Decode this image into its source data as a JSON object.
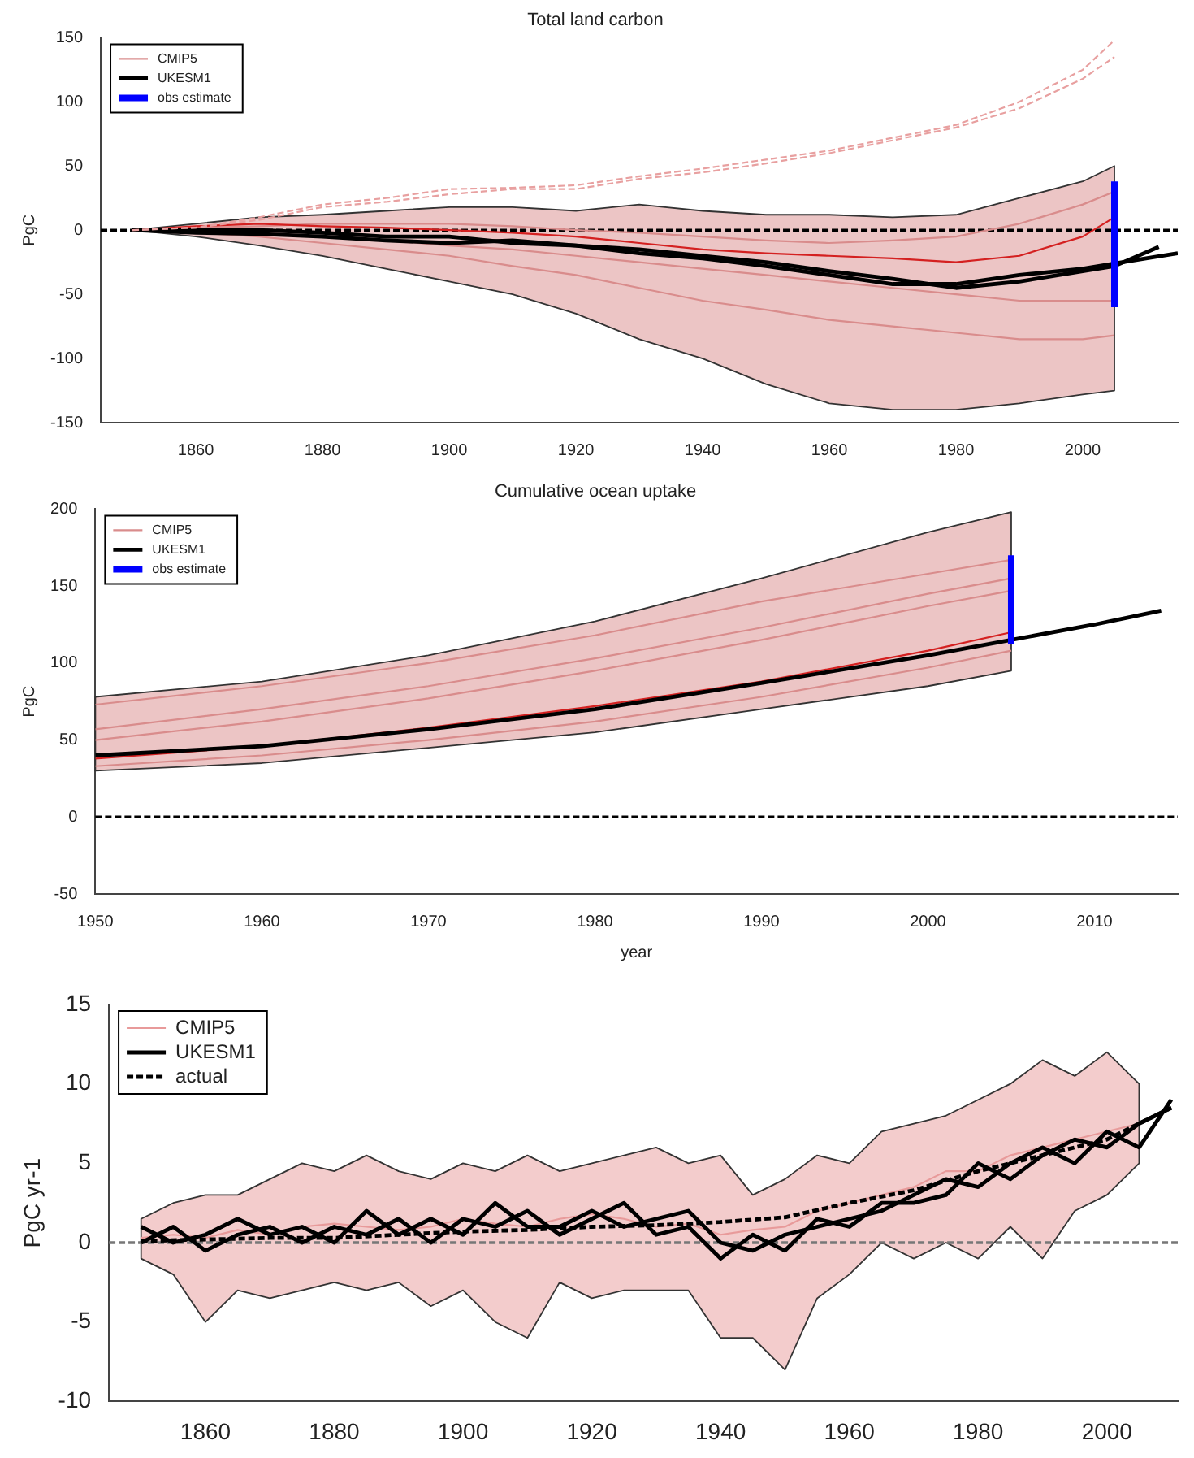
{
  "chart_data": [
    {
      "type": "line",
      "title": "Total land carbon",
      "ylabel": "PgC",
      "xlim": [
        1845,
        2015
      ],
      "xticks": [
        1860,
        1880,
        1900,
        1920,
        1940,
        1960,
        1980,
        2000
      ],
      "ylim": [
        -150,
        150
      ],
      "yticks": [
        -150,
        -100,
        -50,
        0,
        50,
        100,
        150
      ],
      "grid": false,
      "legend": "top left",
      "marker": "none",
      "ref_lines": [
        {
          "axis": "y",
          "value": 0,
          "color": "#000000",
          "line_style": "dashed"
        }
      ],
      "series": [
        {
          "name": "CMIP5",
          "color": "#d98c8c",
          "x": [
            1850,
            1860,
            1870,
            1880,
            1890,
            1900,
            1910,
            1920,
            1930,
            1940,
            1950,
            1960,
            1970,
            1980,
            1990,
            2000,
            2005
          ],
          "values": [
            0,
            0,
            -2,
            -5,
            -8,
            -12,
            -15,
            -20,
            -25,
            -30,
            -35,
            -40,
            -45,
            -50,
            -55,
            -55,
            -55
          ],
          "lower": [
            0,
            -5,
            -12,
            -20,
            -30,
            -40,
            -50,
            -65,
            -85,
            -100,
            -120,
            -135,
            -140,
            -140,
            -135,
            -128,
            -125
          ],
          "upper": [
            0,
            5,
            10,
            12,
            15,
            18,
            18,
            15,
            20,
            15,
            12,
            12,
            10,
            12,
            25,
            38,
            50
          ]
        },
        {
          "color": "#d98c8c",
          "x": [
            1850,
            1860,
            1870,
            1880,
            1890,
            1900,
            1910,
            1920,
            1930,
            1940,
            1950,
            1960,
            1970,
            1980,
            1990,
            2000,
            2005
          ],
          "values": [
            0,
            -2,
            -5,
            -10,
            -15,
            -20,
            -28,
            -35,
            -45,
            -55,
            -62,
            -70,
            -75,
            -80,
            -85,
            -85,
            -82
          ]
        },
        {
          "color": "#d98c8c",
          "x": [
            1850,
            1860,
            1870,
            1880,
            1890,
            1900,
            1910,
            1920,
            1930,
            1940,
            1950,
            1960,
            1970,
            1980,
            1990,
            2000,
            2005
          ],
          "values": [
            0,
            2,
            3,
            5,
            5,
            5,
            3,
            0,
            -2,
            -5,
            -8,
            -10,
            -8,
            -5,
            5,
            20,
            30
          ]
        },
        {
          "color": "#e8a0a0",
          "line_style": "dashed",
          "x": [
            1850,
            1860,
            1870,
            1880,
            1890,
            1900,
            1910,
            1920,
            1930,
            1940,
            1950,
            1960,
            1970,
            1980,
            1990,
            2000,
            2005
          ],
          "values": [
            0,
            2,
            10,
            20,
            25,
            32,
            33,
            35,
            42,
            48,
            55,
            62,
            72,
            82,
            100,
            125,
            148
          ]
        },
        {
          "color": "#e8a0a0",
          "line_style": "dashed",
          "x": [
            1850,
            1860,
            1870,
            1880,
            1890,
            1900,
            1910,
            1920,
            1930,
            1940,
            1950,
            1960,
            1970,
            1980,
            1990,
            2000,
            2005
          ],
          "values": [
            0,
            2,
            8,
            18,
            22,
            28,
            32,
            32,
            40,
            45,
            52,
            60,
            70,
            80,
            95,
            118,
            135
          ]
        },
        {
          "color": "#d42020",
          "x": [
            1850,
            1860,
            1870,
            1880,
            1890,
            1900,
            1910,
            1920,
            1930,
            1940,
            1950,
            1960,
            1970,
            1980,
            1990,
            2000,
            2005
          ],
          "values": [
            0,
            3,
            5,
            3,
            2,
            0,
            -2,
            -5,
            -10,
            -15,
            -18,
            -20,
            -22,
            -25,
            -20,
            -5,
            10
          ]
        },
        {
          "name": "UKESM1",
          "color": "#000000",
          "x": [
            1850,
            1860,
            1870,
            1880,
            1890,
            1900,
            1910,
            1920,
            1930,
            1940,
            1950,
            1960,
            1970,
            1980,
            1990,
            2000,
            2010,
            2015
          ],
          "values": [
            0,
            0,
            0,
            -2,
            -5,
            -5,
            -10,
            -12,
            -18,
            -22,
            -28,
            -35,
            -42,
            -42,
            -35,
            -30,
            -22,
            -18
          ]
        },
        {
          "color": "#000000",
          "x": [
            1850,
            1860,
            1870,
            1880,
            1890,
            1900,
            1910,
            1920,
            1930,
            1940,
            1950,
            1960,
            1970,
            1980,
            1990,
            2000,
            2005,
            2012
          ],
          "values": [
            0,
            -2,
            -3,
            -5,
            -8,
            -10,
            -8,
            -12,
            -15,
            -20,
            -25,
            -32,
            -38,
            -45,
            -40,
            -32,
            -28,
            -13
          ]
        },
        {
          "name": "obs estimate",
          "color": "#0000ff",
          "x": [
            2005,
            2005
          ],
          "values": [
            -60,
            38
          ]
        }
      ]
    },
    {
      "type": "line",
      "title": "Cumulative ocean uptake",
      "xlabel": "year",
      "ylabel": "PgC",
      "xlim": [
        1950,
        2015
      ],
      "xticks": [
        1950,
        1960,
        1970,
        1980,
        1990,
        2000,
        2010
      ],
      "ylim": [
        -50,
        200
      ],
      "yticks": [
        -50,
        0,
        50,
        100,
        150,
        200
      ],
      "grid": false,
      "legend": "top left",
      "marker": "none",
      "ref_lines": [
        {
          "axis": "y",
          "value": 0,
          "color": "#000000",
          "line_style": "dashed"
        }
      ],
      "series": [
        {
          "name": "CMIP5",
          "color": "#d98c8c",
          "x": [
            1950,
            1960,
            1970,
            1980,
            1990,
            2000,
            2005
          ],
          "values": [
            73,
            85,
            100,
            118,
            140,
            158,
            167
          ],
          "lower": [
            30,
            35,
            45,
            55,
            70,
            85,
            95
          ],
          "upper": [
            78,
            88,
            105,
            127,
            155,
            185,
            198
          ]
        },
        {
          "color": "#d98c8c",
          "x": [
            1950,
            1960,
            1970,
            1980,
            1990,
            2000,
            2005
          ],
          "values": [
            57,
            70,
            85,
            103,
            123,
            145,
            155
          ]
        },
        {
          "color": "#d98c8c",
          "x": [
            1950,
            1960,
            1970,
            1980,
            1990,
            2000,
            2005
          ],
          "values": [
            50,
            62,
            77,
            95,
            115,
            137,
            147
          ]
        },
        {
          "color": "#d98c8c",
          "x": [
            1950,
            1960,
            1970,
            1980,
            1990,
            2000,
            2005
          ],
          "values": [
            33,
            40,
            50,
            62,
            78,
            97,
            108
          ]
        },
        {
          "color": "#d42020",
          "x": [
            1950,
            1960,
            1970,
            1980,
            1990,
            2000,
            2005
          ],
          "values": [
            38,
            46,
            58,
            72,
            88,
            108,
            120
          ]
        },
        {
          "name": "UKESM1",
          "color": "#000000",
          "x": [
            1950,
            1960,
            1970,
            1980,
            1990,
            2000,
            2005,
            2010,
            2014
          ],
          "values": [
            40,
            46,
            57,
            70,
            87,
            105,
            115,
            125,
            134
          ]
        },
        {
          "name": "obs estimate",
          "color": "#0000ff",
          "x": [
            2005,
            2005
          ],
          "values": [
            112,
            170
          ]
        }
      ]
    },
    {
      "type": "line",
      "ylabel": "PgC yr-1",
      "xlim": [
        1845,
        2011
      ],
      "xticks": [
        1860,
        1880,
        1900,
        1920,
        1940,
        1960,
        1980,
        2000
      ],
      "ylim": [
        -10,
        15
      ],
      "yticks": [
        -10,
        -5,
        0,
        5,
        10,
        15
      ],
      "grid": false,
      "legend": "top left",
      "marker": "none",
      "ref_lines": [
        {
          "axis": "y",
          "value": 0,
          "color": "#777777",
          "line_style": "dashed"
        }
      ],
      "series": [
        {
          "name": "CMIP5",
          "color": "#e89a9a",
          "x": [
            1850,
            1855,
            1860,
            1865,
            1870,
            1875,
            1880,
            1885,
            1890,
            1895,
            1900,
            1905,
            1910,
            1915,
            1920,
            1925,
            1930,
            1935,
            1940,
            1945,
            1950,
            1955,
            1960,
            1965,
            1970,
            1975,
            1980,
            1985,
            1990,
            1995,
            2000,
            2005
          ],
          "values": [
            0.3,
            0.5,
            0.3,
            0.8,
            0.5,
            1,
            1.2,
            1,
            0.8,
            1,
            1.5,
            1.2,
            1,
            1.5,
            1.8,
            1.5,
            1,
            1.2,
            0.5,
            0.8,
            1,
            2,
            2.5,
            3,
            3.5,
            4.5,
            4.5,
            5.5,
            6,
            6.5,
            7,
            7.5
          ],
          "lower": [
            -1,
            -2,
            -5,
            -3,
            -3.5,
            -3,
            -2.5,
            -3,
            -2.5,
            -4,
            -3,
            -5,
            -6,
            -2.5,
            -3.5,
            -3,
            -3,
            -3,
            -6,
            -6,
            -8,
            -3.5,
            -2,
            0,
            -1,
            0,
            -1,
            1,
            -1,
            2,
            3,
            5
          ],
          "upper": [
            1.5,
            2.5,
            3,
            3,
            4,
            5,
            4.5,
            5.5,
            4.5,
            4,
            5,
            4.5,
            5.5,
            4.5,
            5,
            5.5,
            6,
            5,
            5.5,
            3,
            4,
            5.5,
            5,
            7,
            7.5,
            8,
            9,
            10,
            11.5,
            10.5,
            12,
            10
          ]
        },
        {
          "name": "UKESM1",
          "color": "#000000",
          "x": [
            1850,
            1855,
            1860,
            1865,
            1870,
            1875,
            1880,
            1885,
            1890,
            1895,
            1900,
            1905,
            1910,
            1915,
            1920,
            1925,
            1930,
            1935,
            1940,
            1945,
            1950,
            1955,
            1960,
            1965,
            1970,
            1975,
            1980,
            1985,
            1990,
            1995,
            2000,
            2005,
            2010
          ],
          "values": [
            1,
            0,
            0.5,
            1.5,
            0.5,
            1,
            0,
            2,
            0.5,
            1.5,
            0.5,
            2.5,
            1,
            1,
            2,
            1,
            1.5,
            2,
            0,
            -0.5,
            0.5,
            1,
            1.5,
            2,
            3,
            4,
            3.5,
            5,
            6,
            5,
            7,
            6,
            9
          ]
        },
        {
          "color": "#000000",
          "x": [
            1850,
            1855,
            1860,
            1865,
            1870,
            1875,
            1880,
            1885,
            1890,
            1895,
            1900,
            1905,
            1910,
            1915,
            1920,
            1925,
            1930,
            1935,
            1940,
            1945,
            1950,
            1955,
            1960,
            1965,
            1970,
            1975,
            1980,
            1985,
            1990,
            1995,
            2000,
            2005,
            2010
          ],
          "values": [
            0,
            1,
            -0.5,
            0.5,
            1,
            0,
            1,
            0.5,
            1.5,
            0,
            1.5,
            1,
            2,
            0.5,
            1.5,
            2.5,
            0.5,
            1,
            -1,
            0.5,
            -0.5,
            1.5,
            1,
            2.5,
            2.5,
            3,
            5,
            4,
            5.5,
            6.5,
            6,
            7.5,
            8.5
          ]
        },
        {
          "name": "actual",
          "color": "#000000",
          "line_style": "dashed",
          "x": [
            1850,
            1860,
            1870,
            1880,
            1890,
            1900,
            1910,
            1920,
            1930,
            1940,
            1950,
            1960,
            1970,
            1980,
            1990,
            2000,
            2010
          ],
          "values": [
            0.1,
            0.2,
            0.3,
            0.3,
            0.5,
            0.7,
            0.8,
            1,
            1.1,
            1.3,
            1.6,
            2.5,
            3.3,
            4.5,
            5.5,
            6.5,
            8.5
          ]
        }
      ]
    }
  ]
}
